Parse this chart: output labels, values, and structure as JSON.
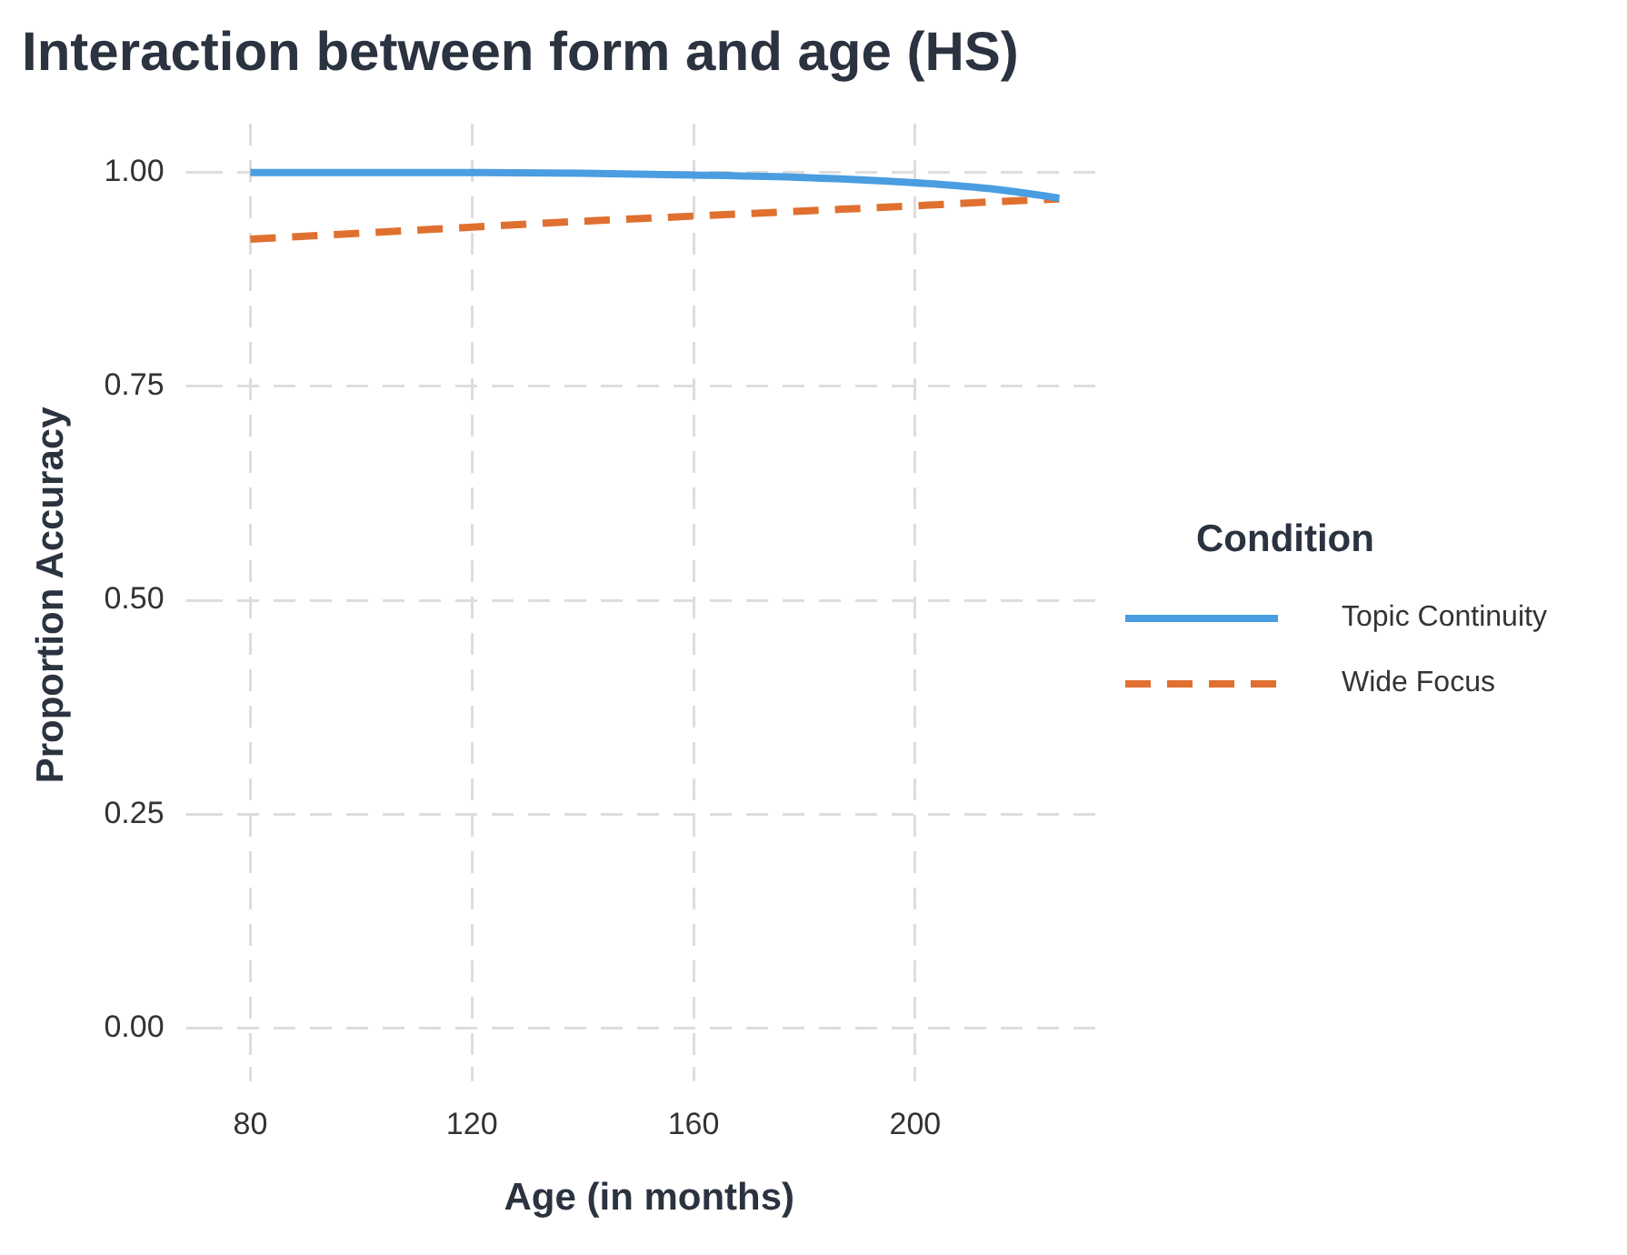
{
  "chart_data": {
    "type": "line",
    "title": "Interaction between form and age (HS)",
    "xlabel": "Age (in months)",
    "ylabel": "Proportion Accuracy",
    "legend_title": "Condition",
    "x": [
      80,
      100,
      120,
      140,
      160,
      180,
      200,
      215,
      226
    ],
    "series": [
      {
        "name": "Topic Continuity",
        "color": "#4a9de0",
        "line_style": "solid",
        "values": [
          1.0,
          1.0,
          1.0,
          0.999,
          0.997,
          0.994,
          0.988,
          0.98,
          0.97
        ]
      },
      {
        "name": "Wide Focus",
        "color": "#e07030",
        "line_style": "dashed",
        "values": [
          0.922,
          0.929,
          0.936,
          0.943,
          0.949,
          0.955,
          0.961,
          0.966,
          0.969
        ]
      }
    ],
    "xlim": [
      71,
      233
    ],
    "xticks": [
      80,
      120,
      160,
      200
    ],
    "ylim": [
      -0.045,
      1.057
    ],
    "yticks": [
      {
        "value": 0,
        "label": "0.00"
      },
      {
        "value": 0.25,
        "label": "0.25"
      },
      {
        "value": 0.5,
        "label": "0.50"
      },
      {
        "value": 0.75,
        "label": "0.75"
      },
      {
        "value": 1,
        "label": "1.00"
      }
    ],
    "grid": true,
    "legend": "right"
  }
}
